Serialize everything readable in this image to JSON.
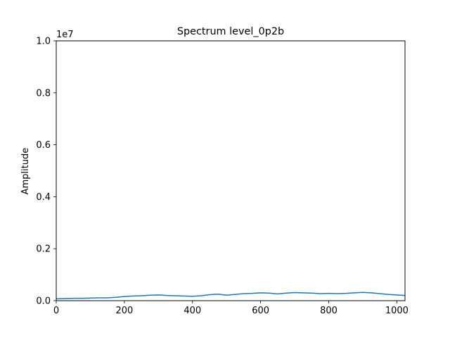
{
  "chart_data": {
    "type": "line",
    "title": "Spectrum level_0p2b",
    "xlabel": "",
    "ylabel": "Amplitude",
    "y_offset_label": "1e7",
    "xlim": [
      0,
      1024
    ],
    "ylim": [
      0,
      10000000
    ],
    "x_ticks": [
      0,
      200,
      400,
      600,
      800,
      1000
    ],
    "x_tick_labels": [
      "0",
      "200",
      "400",
      "600",
      "800",
      "1000"
    ],
    "y_ticks": [
      0,
      2000000,
      4000000,
      6000000,
      8000000,
      10000000
    ],
    "y_tick_labels": [
      "0.0",
      "0.2",
      "0.4",
      "0.6",
      "0.8",
      "1.0"
    ],
    "grid": false,
    "series": [
      {
        "color": "#1f77b4",
        "x": [
          0,
          25,
          50,
          75,
          100,
          125,
          150,
          175,
          200,
          225,
          250,
          275,
          300,
          325,
          350,
          375,
          400,
          425,
          450,
          475,
          500,
          525,
          550,
          575,
          600,
          625,
          650,
          675,
          700,
          725,
          750,
          775,
          800,
          825,
          850,
          875,
          900,
          925,
          950,
          975,
          1000,
          1024
        ],
        "y": [
          70000,
          80000,
          90000,
          90000,
          100000,
          110000,
          110000,
          130000,
          160000,
          180000,
          190000,
          210000,
          220000,
          200000,
          190000,
          180000,
          170000,
          190000,
          230000,
          250000,
          210000,
          240000,
          270000,
          280000,
          300000,
          290000,
          260000,
          290000,
          310000,
          300000,
          290000,
          270000,
          280000,
          270000,
          280000,
          300000,
          320000,
          300000,
          270000,
          240000,
          220000,
          200000
        ]
      }
    ]
  }
}
